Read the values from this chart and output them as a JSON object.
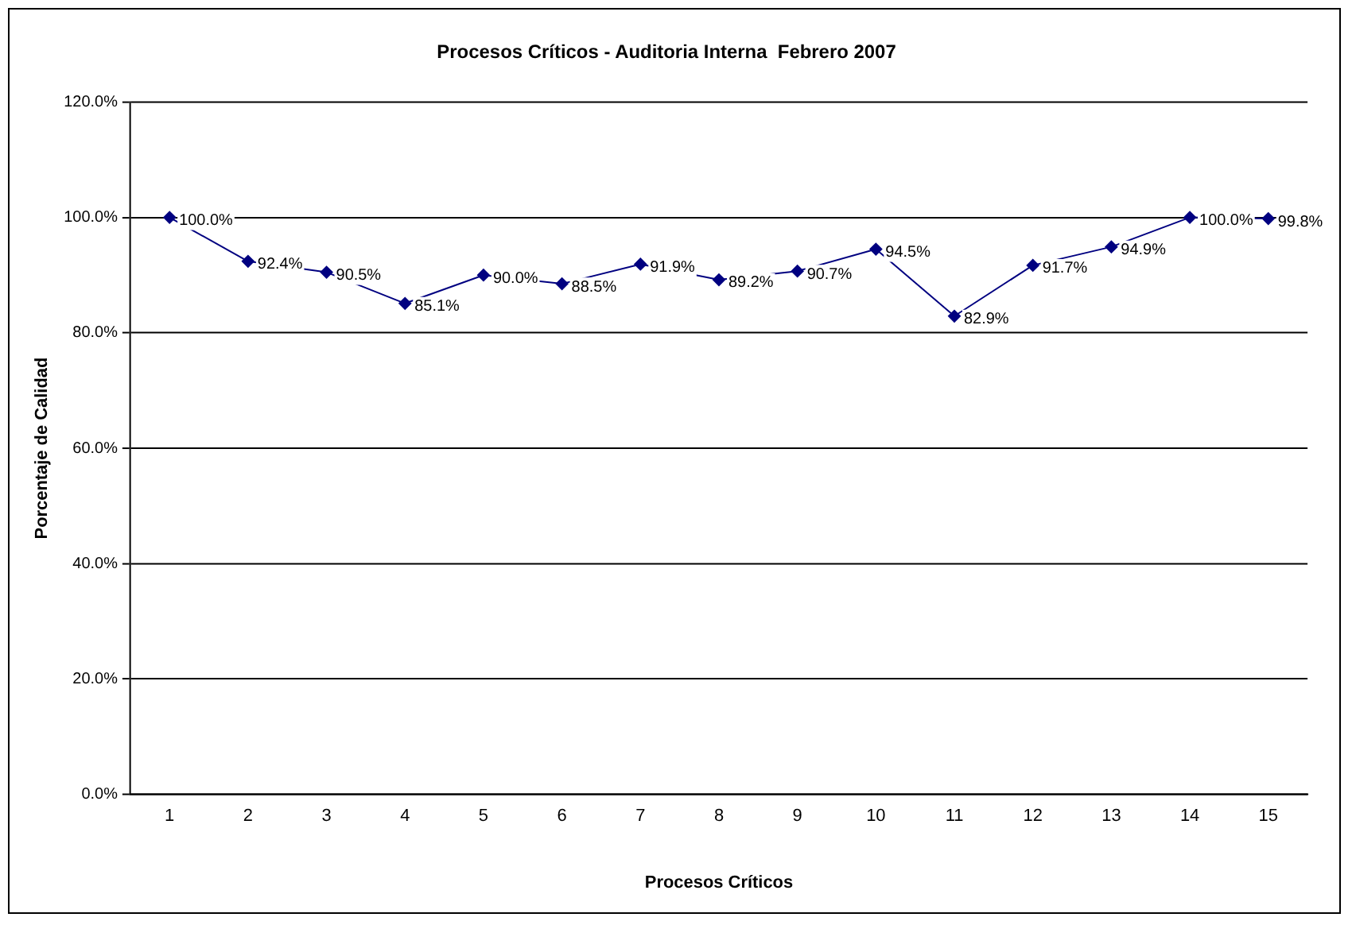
{
  "chart_data": {
    "type": "line",
    "title": "Procesos Críticos - Auditoria Interna  Febrero 2007",
    "xlabel": "Procesos Críticos",
    "ylabel": "Porcentaje de Calidad",
    "categories": [
      "1",
      "2",
      "3",
      "4",
      "5",
      "6",
      "7",
      "8",
      "9",
      "10",
      "11",
      "12",
      "13",
      "14",
      "15"
    ],
    "series": [
      {
        "color": "#000080",
        "values": [
          100.0,
          92.4,
          90.5,
          85.1,
          90.0,
          88.5,
          91.9,
          89.2,
          90.7,
          94.5,
          82.9,
          91.7,
          94.9,
          100.0,
          99.8
        ],
        "value_labels": [
          "100.0%",
          "92.4%",
          "90.5%",
          "85.1%",
          "90.0%",
          "88.5%",
          "91.9%",
          "89.2%",
          "90.7%",
          "94.5%",
          "82.9%",
          "91.7%",
          "94.9%",
          "100.0%",
          "99.8%"
        ]
      }
    ],
    "ylim": [
      0,
      120
    ],
    "yticks": [
      {
        "value": 0,
        "label": "0.0%"
      },
      {
        "value": 20,
        "label": "20.0%"
      },
      {
        "value": 40,
        "label": "40.0%"
      },
      {
        "value": 60,
        "label": "60.0%"
      },
      {
        "value": 80,
        "label": "80.0%"
      },
      {
        "value": 100,
        "label": "100.0%"
      },
      {
        "value": 120,
        "label": "120.0%"
      }
    ],
    "grid": "y",
    "marker": "diamond",
    "line_style": "solid",
    "legend": false
  }
}
